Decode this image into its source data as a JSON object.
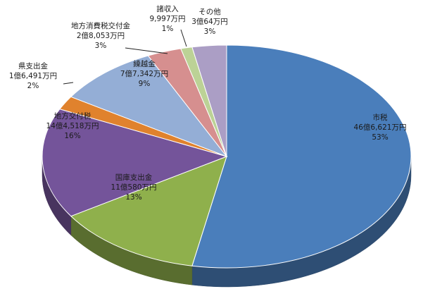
{
  "chart_data": {
    "type": "pie",
    "title": "",
    "slices": [
      {
        "label": "市税",
        "amount": "46億6,621万円",
        "percent": "53%",
        "value": 53,
        "color": "#4a7ebb"
      },
      {
        "label": "国庫支出金",
        "amount": "11億580万円",
        "percent": "13%",
        "value": 13,
        "color": "#8fb04c"
      },
      {
        "label": "地方交付税",
        "amount": "14億4,518万円",
        "percent": "16%",
        "value": 16,
        "color": "#74549a"
      },
      {
        "label": "県支出金",
        "amount": "1億6,491万円",
        "percent": "2%",
        "value": 2,
        "color": "#e0822d"
      },
      {
        "label": "繰越金",
        "amount": "7億7,342万円",
        "percent": "9%",
        "value": 9,
        "color": "#94aed6"
      },
      {
        "label": "地方消費税交付金",
        "amount": "2億8,053万円",
        "percent": "3%",
        "value": 3,
        "color": "#d68f8f"
      },
      {
        "label": "諸収入",
        "amount": "9,997万円",
        "percent": "1%",
        "value": 1,
        "color": "#bcd296"
      },
      {
        "label": "その他",
        "amount": "3億64万円",
        "percent": "3%",
        "value": 3,
        "color": "#ab9ec5"
      }
    ],
    "legend": "none",
    "style": "3d-pie"
  }
}
